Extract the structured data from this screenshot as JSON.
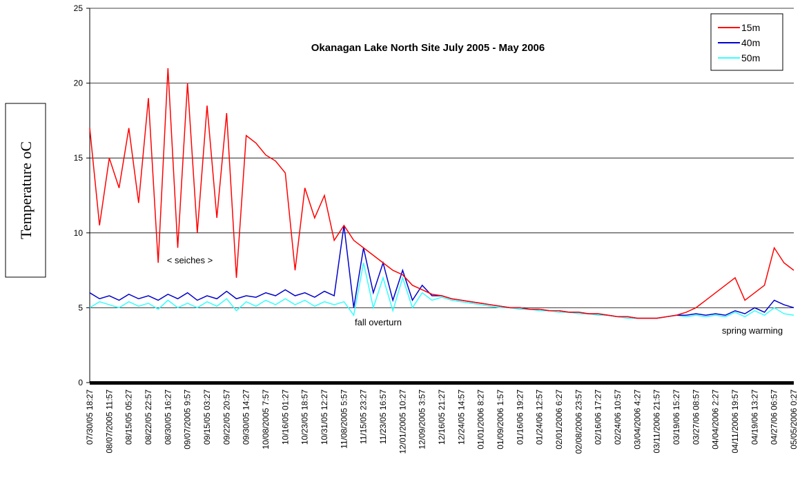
{
  "chart_data": {
    "type": "line",
    "title": "Okanagan Lake North Site July 2005 - May 2006",
    "y_label": "Temperature oC",
    "annotations": [
      "< seiches >",
      "fall overturn",
      "spring warming"
    ],
    "legend": "upper right",
    "grid": true,
    "ylim": [
      0,
      25
    ],
    "yticks": [
      0,
      5,
      10,
      15,
      20,
      25
    ],
    "categories": [
      "07/30/05 18:27",
      null,
      "08/07/2005 11:57",
      null,
      "08/15/05 05:27",
      null,
      "08/22/05 22:57",
      null,
      "08/30/05 16:27",
      null,
      "09/07/2005 9:57",
      null,
      "09/15/05 03:27",
      null,
      "09/22/05 20:57",
      null,
      "09/30/05 14:27",
      null,
      "10/08/2005 7:57",
      null,
      "10/16/05 01:27",
      null,
      "10/23/05 18:57",
      null,
      "10/31/05 12:27",
      null,
      "11/08/2005 5:57",
      null,
      "11/15/05 23:27",
      null,
      "11/23/05 16:57",
      null,
      "12/01/2005 10:27",
      null,
      "12/09/2005 3:57",
      null,
      "12/16/05 21:27",
      null,
      "12/24/05 14:57",
      null,
      "01/01/2006 8:27",
      null,
      "01/09/2006 1:57",
      null,
      "01/16/06 19:27",
      null,
      "01/24/06 12:57",
      null,
      "02/01/2006 6:27",
      null,
      "02/08/2006 23:57",
      null,
      "02/16/06 17:27",
      null,
      "02/24/06 10:57",
      null,
      "03/04/2006 4:27",
      null,
      "03/11/2006 21:57",
      null,
      "03/19/06 15:27",
      null,
      "03/27/06 08:57",
      null,
      "04/04/2006 2:27",
      null,
      "04/11/2006 19:57",
      null,
      "04/19/06 13:27",
      null,
      "04/27/06 06:57",
      null,
      "05/05/2006 0:27"
    ],
    "series": [
      {
        "name": "15m",
        "color": "#ff0000",
        "values": [
          17,
          10.5,
          15,
          13,
          17,
          12,
          19,
          8,
          21,
          9,
          20,
          10,
          18.5,
          11,
          18,
          7,
          16.5,
          16,
          15.2,
          14.8,
          14,
          7.5,
          13,
          11,
          12.5,
          9.5,
          10.5,
          9.5,
          9,
          8.5,
          8,
          7.5,
          7.2,
          6.5,
          6.2,
          5.9,
          5.8,
          5.6,
          5.5,
          5.4,
          5.3,
          5.2,
          5.1,
          5.0,
          5.0,
          4.9,
          4.9,
          4.8,
          4.8,
          4.7,
          4.7,
          4.6,
          4.6,
          4.5,
          4.4,
          4.4,
          4.3,
          4.3,
          4.3,
          4.4,
          4.5,
          4.7,
          5,
          5.5,
          6,
          6.5,
          7,
          5.5,
          6,
          6.5,
          9,
          8,
          7.5
        ]
      },
      {
        "name": "40m",
        "color": "#0000cc",
        "values": [
          6,
          5.6,
          5.8,
          5.5,
          5.9,
          5.6,
          5.8,
          5.5,
          5.9,
          5.6,
          6,
          5.5,
          5.8,
          5.6,
          6.1,
          5.6,
          5.8,
          5.7,
          6,
          5.8,
          6.2,
          5.8,
          6,
          5.7,
          6.1,
          5.8,
          10.5,
          5,
          9,
          6,
          8,
          5.5,
          7.5,
          5.5,
          6.5,
          5.8,
          5.8,
          5.6,
          5.5,
          5.4,
          5.3,
          5.2,
          5.1,
          5.0,
          5.0,
          4.9,
          4.9,
          4.8,
          4.8,
          4.7,
          4.7,
          4.6,
          4.6,
          4.5,
          4.4,
          4.4,
          4.3,
          4.3,
          4.3,
          4.4,
          4.5,
          4.5,
          4.6,
          4.5,
          4.6,
          4.5,
          4.8,
          4.6,
          5,
          4.7,
          5.5,
          5.2,
          5
        ]
      },
      {
        "name": "50m",
        "color": "#33ffff",
        "values": [
          5,
          5.4,
          5.2,
          5.0,
          5.4,
          5.1,
          5.3,
          4.9,
          5.5,
          5.0,
          5.3,
          5.0,
          5.4,
          5.1,
          5.6,
          4.8,
          5.4,
          5.1,
          5.5,
          5.2,
          5.6,
          5.2,
          5.5,
          5.1,
          5.4,
          5.2,
          5.4,
          4.5,
          8,
          5,
          7,
          4.8,
          7,
          5,
          6,
          5.5,
          5.7,
          5.5,
          5.4,
          5.3,
          5.2,
          5.1,
          5.0,
          5.0,
          4.9,
          4.9,
          4.8,
          4.8,
          4.7,
          4.7,
          4.6,
          4.6,
          4.5,
          4.5,
          4.4,
          4.3,
          4.3,
          4.3,
          4.3,
          4.4,
          4.5,
          4.4,
          4.5,
          4.4,
          4.5,
          4.4,
          4.7,
          4.4,
          4.8,
          4.5,
          5,
          4.6,
          4.5
        ]
      }
    ]
  }
}
